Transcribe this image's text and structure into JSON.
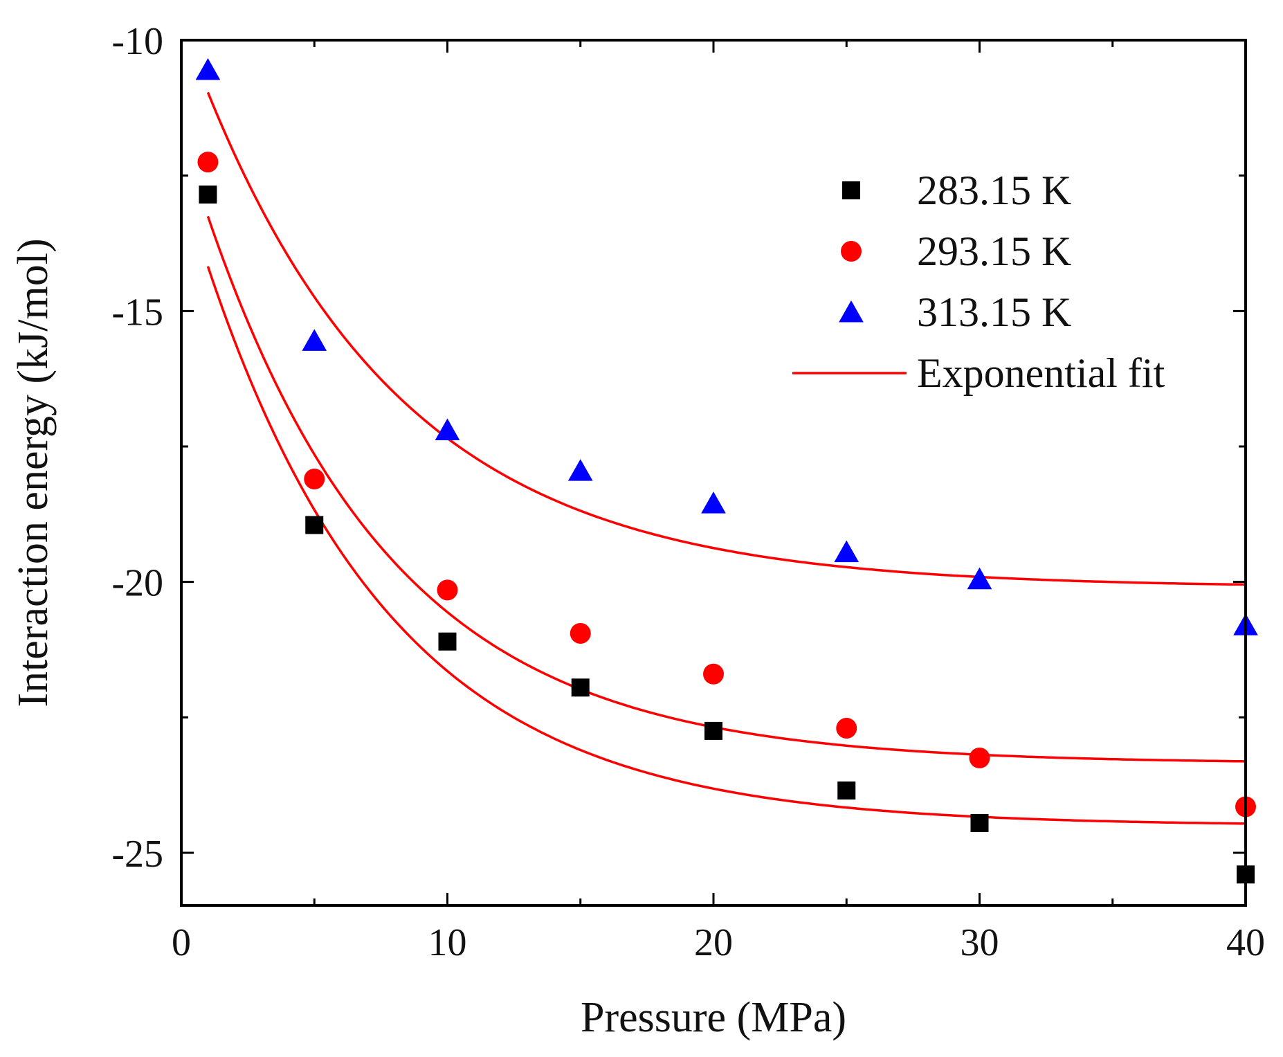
{
  "chart_data": {
    "type": "scatter",
    "title": "",
    "xlabel": "Pressure (MPa)",
    "ylabel": "Interaction energy (kJ/mol)",
    "xlim": [
      0,
      40
    ],
    "ylim": [
      -26,
      -10
    ],
    "xticks": [
      0,
      10,
      20,
      30,
      40
    ],
    "xtick_labels": [
      "0",
      "10",
      "20",
      "30",
      "40"
    ],
    "yticks": [
      -10,
      -15,
      -20,
      -25
    ],
    "ytick_labels": [
      "-10",
      "-15",
      "-20",
      "-25"
    ],
    "grid": false,
    "legend_position": "top-right",
    "series": [
      {
        "name": "283.15 K",
        "marker": "square",
        "color": "#000000",
        "x": [
          1,
          5,
          10,
          15,
          20,
          25,
          30,
          40
        ],
        "y": [
          -12.85,
          -18.95,
          -21.1,
          -21.95,
          -22.75,
          -23.85,
          -24.45,
          -25.4
        ]
      },
      {
        "name": "293.15 K",
        "marker": "circle",
        "color": "#ff0000",
        "x": [
          1,
          5,
          10,
          15,
          20,
          25,
          30,
          40
        ],
        "y": [
          -12.25,
          -18.1,
          -20.15,
          -20.95,
          -21.7,
          -22.7,
          -23.25,
          -24.15
        ]
      },
      {
        "name": "313.15 K",
        "marker": "triangle",
        "color": "#0000ff",
        "x": [
          1,
          5,
          10,
          15,
          20,
          25,
          30,
          40
        ],
        "y": [
          -10.55,
          -15.55,
          -17.2,
          -17.95,
          -18.55,
          -19.45,
          -19.95,
          -20.8
        ]
      }
    ],
    "fits": [
      {
        "name": "Exponential fit",
        "for_series": "283.15 K",
        "color": "#ff0000",
        "model": "y = y0 + A*exp(-x/t)",
        "y0": -24.5,
        "A": 11.91,
        "t": 7.0,
        "x_range": [
          1,
          40
        ]
      },
      {
        "name": "Exponential fit",
        "for_series": "293.15 K",
        "color": "#ff0000",
        "model": "y = y0 + A*exp(-x/t)",
        "y0": -23.35,
        "A": 11.65,
        "t": 7.0,
        "x_range": [
          1,
          40
        ]
      },
      {
        "name": "Exponential fit",
        "for_series": "313.15 K",
        "color": "#ff0000",
        "model": "y = y0 + A*exp(-x/t)",
        "y0": -20.1,
        "A": 10.44,
        "t": 7.5,
        "x_range": [
          1,
          40
        ]
      }
    ],
    "legend": [
      {
        "label": "283.15 K",
        "marker": "square",
        "color": "#000000"
      },
      {
        "label": "293.15 K",
        "marker": "circle",
        "color": "#ff0000"
      },
      {
        "label": "313.15 K",
        "marker": "triangle",
        "color": "#0000ff"
      },
      {
        "label": "Exponential fit",
        "marker": "line",
        "color": "#ff0000"
      }
    ]
  }
}
